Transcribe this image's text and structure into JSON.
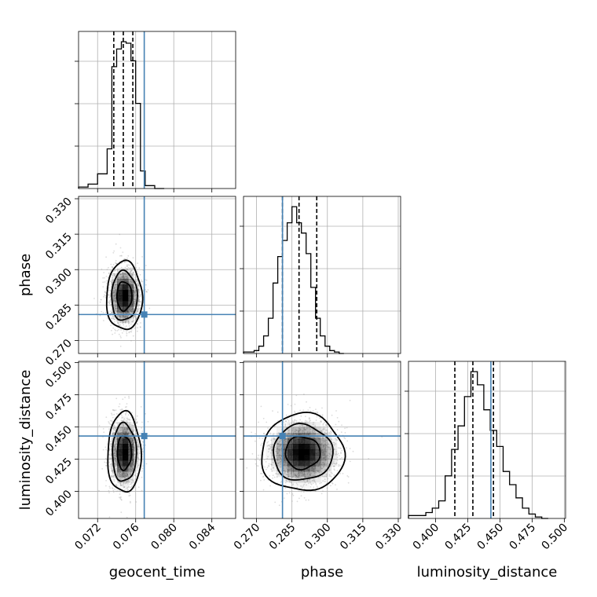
{
  "chart_data": {
    "type": "corner",
    "parameters": [
      {
        "name": "geocent_time",
        "label": "geocent_time",
        "range": [
          0.07,
          0.0865
        ],
        "ticks": [
          "0.072",
          "0.076",
          "0.080",
          "0.084"
        ],
        "tick_values": [
          0.072,
          0.076,
          0.08,
          0.084
        ],
        "quantiles": [
          0.0737,
          0.0747,
          0.0757
        ],
        "truth": 0.0769
      },
      {
        "name": "phase",
        "label": "phase",
        "range": [
          0.2645,
          0.331
        ],
        "ticks": [
          "0.270",
          "0.285",
          "0.300",
          "0.315",
          "0.330"
        ],
        "tick_values": [
          0.27,
          0.285,
          0.3,
          0.315,
          0.33
        ],
        "quantiles": [
          0.281,
          0.288,
          0.2955
        ],
        "truth": 0.281
      },
      {
        "name": "luminosity_distance",
        "label": "luminosity_distance",
        "range": [
          0.379,
          0.501
        ],
        "ticks": [
          "0.400",
          "0.425",
          "0.450",
          "0.475",
          "0.500"
        ],
        "tick_values": [
          0.4,
          0.425,
          0.45,
          0.475,
          0.5
        ],
        "quantiles": [
          0.415,
          0.429,
          0.445
        ],
        "truth": 0.443
      }
    ],
    "histograms": [
      {
        "parameter": "geocent_time",
        "bin_edges": [
          0.07,
          0.071,
          0.072,
          0.073,
          0.0735,
          0.074,
          0.0745,
          0.075,
          0.0755,
          0.076,
          0.0765,
          0.077,
          0.078,
          0.079
        ],
        "counts": [
          1,
          3,
          10,
          27,
          83,
          95,
          100,
          99,
          87,
          58,
          12,
          2,
          0
        ]
      },
      {
        "parameter": "phase",
        "bin_edges": [
          0.2645,
          0.269,
          0.271,
          0.273,
          0.275,
          0.277,
          0.279,
          0.281,
          0.283,
          0.285,
          0.287,
          0.289,
          0.291,
          0.293,
          0.295,
          0.297,
          0.299,
          0.301,
          0.303,
          0.305,
          0.307
        ],
        "counts": [
          1,
          2,
          5,
          12,
          24,
          48,
          66,
          77,
          89,
          100,
          89,
          82,
          68,
          45,
          24,
          12,
          5,
          2,
          1,
          0
        ]
      },
      {
        "parameter": "luminosity_distance",
        "bin_edges": [
          0.379,
          0.3925,
          0.3975,
          0.4025,
          0.4075,
          0.4125,
          0.4175,
          0.4225,
          0.4275,
          0.4325,
          0.4375,
          0.4425,
          0.4475,
          0.4525,
          0.4575,
          0.4625,
          0.4675,
          0.4725,
          0.4775,
          0.4825,
          0.4875
        ],
        "counts": [
          2,
          4,
          7,
          12,
          29,
          47,
          63,
          83,
          100,
          91,
          74,
          60,
          49,
          32,
          23,
          14,
          7,
          3,
          1,
          0
        ]
      }
    ],
    "joint_posteriors": [
      {
        "x": "geocent_time",
        "y": "phase",
        "mean": [
          0.0748,
          0.2888
        ],
        "sd": [
          0.00075,
          0.0058
        ]
      },
      {
        "x": "geocent_time",
        "y": "luminosity_distance",
        "mean": [
          0.0748,
          0.43
        ],
        "sd": [
          0.0007,
          0.0125
        ]
      },
      {
        "x": "phase",
        "y": "luminosity_distance",
        "mean": [
          0.2895,
          0.43
        ],
        "sd": [
          0.007,
          0.012
        ]
      }
    ],
    "grid": true
  }
}
